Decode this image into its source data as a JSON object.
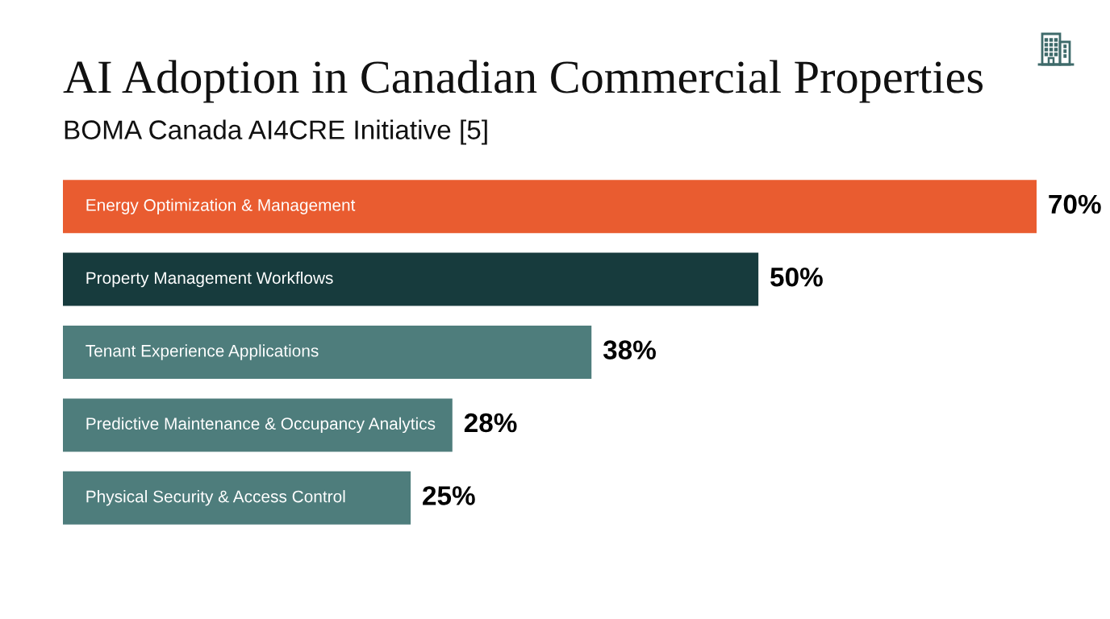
{
  "chart_data": {
    "type": "bar",
    "orientation": "horizontal",
    "title": "AI Adoption in Canadian Commercial Properties",
    "subtitle": "BOMA Canada AI4CRE Initiative [5]",
    "categories": [
      "Energy Optimization & Management",
      "Property Management Workflows",
      "Tenant Experience Applications",
      "Predictive Maintenance & Occupancy Analytics",
      "Physical Security & Access Control"
    ],
    "values": [
      70,
      50,
      38,
      28,
      25
    ],
    "colors": [
      "#e95c30",
      "#173b3d",
      "#4e7d7c",
      "#4e7d7c",
      "#4e7d7c"
    ],
    "value_labels": [
      "70%",
      "50%",
      "38%",
      "28%",
      "25%"
    ]
  }
}
